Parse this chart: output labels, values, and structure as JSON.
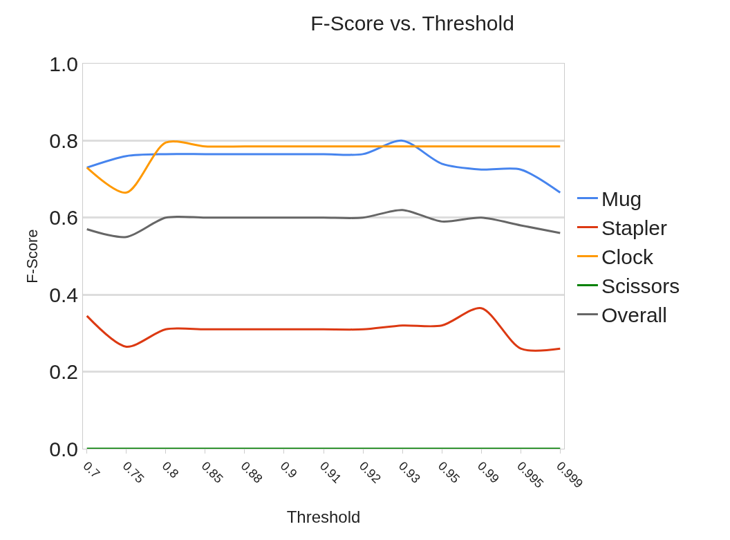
{
  "chart_data": {
    "type": "line",
    "title": "F-Score vs. Threshold",
    "xlabel": "Threshold",
    "ylabel": "F-Score",
    "categories": [
      "0.7",
      "0.75",
      "0.8",
      "0.85",
      "0.88",
      "0.9",
      "0.91",
      "0.92",
      "0.93",
      "0.95",
      "0.99",
      "0.995",
      "0.999"
    ],
    "series": [
      {
        "name": "Mug",
        "color": "#4684ee",
        "values": [
          0.73,
          0.76,
          0.765,
          0.765,
          0.765,
          0.765,
          0.765,
          0.765,
          0.8,
          0.74,
          0.725,
          0.725,
          0.665
        ]
      },
      {
        "name": "Stapler",
        "color": "#dc3912",
        "values": [
          0.345,
          0.265,
          0.31,
          0.31,
          0.31,
          0.31,
          0.31,
          0.31,
          0.32,
          0.32,
          0.365,
          0.26,
          0.26
        ]
      },
      {
        "name": "Clock",
        "color": "#ff9900",
        "values": [
          0.73,
          0.665,
          0.795,
          0.785,
          0.785,
          0.785,
          0.785,
          0.785,
          0.785,
          0.785,
          0.785,
          0.785,
          0.785
        ]
      },
      {
        "name": "Scissors",
        "color": "#008000",
        "values": [
          0,
          0,
          0,
          0,
          0,
          0,
          0,
          0,
          0,
          0,
          0,
          0,
          0
        ]
      },
      {
        "name": "Overall",
        "color": "#666666",
        "values": [
          0.57,
          0.55,
          0.6,
          0.6,
          0.6,
          0.6,
          0.6,
          0.6,
          0.62,
          0.59,
          0.6,
          0.58,
          0.56
        ]
      }
    ],
    "ylim": [
      0,
      1
    ],
    "yticks": [
      {
        "value": 0,
        "label": "0.0"
      },
      0.2,
      0.4,
      0.6,
      0.8,
      {
        "value": 1,
        "label": "1.0"
      }
    ],
    "grid": "y",
    "legend": "right",
    "marker": "none",
    "line_style": "solid"
  }
}
